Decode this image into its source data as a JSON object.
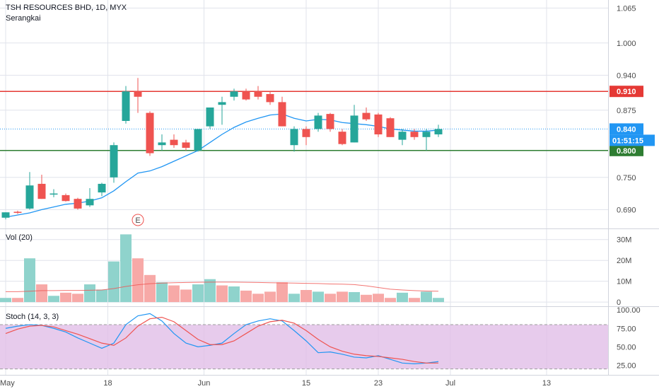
{
  "header": {
    "symbol_line": "TSH RESOURCES BHD, 1D, MYX",
    "style_label": "Serangkai"
  },
  "colors": {
    "up": "#26a69a",
    "down": "#ef5350",
    "ma": "#2196f3",
    "resistance": "#e53935",
    "support": "#2e7d32",
    "current": "#2196f3",
    "stoch_k": "#2196f3",
    "stoch_d": "#ef5350",
    "stoch_band": "#e1bee7",
    "grid": "#e0e3eb"
  },
  "chart_data": [
    {
      "type": "candlestick",
      "name": "price",
      "ylim": [
        0.655,
        1.08
      ],
      "yticks": [
        0.69,
        0.75,
        0.8,
        0.875,
        0.94,
        1.0,
        1.065
      ],
      "ytick_labels": [
        "0.690",
        "0.750",
        "0.800",
        "0.875",
        "0.940",
        "1.000",
        "1.065"
      ],
      "candles": [
        {
          "o": 0.675,
          "h": 0.685,
          "l": 0.672,
          "c": 0.685
        },
        {
          "o": 0.686,
          "h": 0.688,
          "l": 0.682,
          "c": 0.684
        },
        {
          "o": 0.692,
          "h": 0.76,
          "l": 0.69,
          "c": 0.735
        },
        {
          "o": 0.738,
          "h": 0.755,
          "l": 0.71,
          "c": 0.71
        },
        {
          "o": 0.72,
          "h": 0.728,
          "l": 0.713,
          "c": 0.72
        },
        {
          "o": 0.717,
          "h": 0.72,
          "l": 0.705,
          "c": 0.706
        },
        {
          "o": 0.71,
          "h": 0.712,
          "l": 0.69,
          "c": 0.692
        },
        {
          "o": 0.698,
          "h": 0.73,
          "l": 0.695,
          "c": 0.71
        },
        {
          "o": 0.722,
          "h": 0.74,
          "l": 0.715,
          "c": 0.738
        },
        {
          "o": 0.75,
          "h": 0.815,
          "l": 0.74,
          "c": 0.81
        },
        {
          "o": 0.855,
          "h": 0.92,
          "l": 0.85,
          "c": 0.91
        },
        {
          "o": 0.91,
          "h": 0.935,
          "l": 0.87,
          "c": 0.9
        },
        {
          "o": 0.87,
          "h": 0.873,
          "l": 0.79,
          "c": 0.795
        },
        {
          "o": 0.81,
          "h": 0.83,
          "l": 0.8,
          "c": 0.815
        },
        {
          "o": 0.82,
          "h": 0.83,
          "l": 0.805,
          "c": 0.81
        },
        {
          "o": 0.815,
          "h": 0.82,
          "l": 0.8,
          "c": 0.805
        },
        {
          "o": 0.8,
          "h": 0.84,
          "l": 0.798,
          "c": 0.84
        },
        {
          "o": 0.845,
          "h": 0.88,
          "l": 0.84,
          "c": 0.88
        },
        {
          "o": 0.885,
          "h": 0.9,
          "l": 0.848,
          "c": 0.89
        },
        {
          "o": 0.9,
          "h": 0.915,
          "l": 0.893,
          "c": 0.91
        },
        {
          "o": 0.91,
          "h": 0.915,
          "l": 0.893,
          "c": 0.895
        },
        {
          "o": 0.91,
          "h": 0.92,
          "l": 0.895,
          "c": 0.9
        },
        {
          "o": 0.905,
          "h": 0.91,
          "l": 0.885,
          "c": 0.89
        },
        {
          "o": 0.89,
          "h": 0.9,
          "l": 0.845,
          "c": 0.845
        },
        {
          "o": 0.81,
          "h": 0.845,
          "l": 0.798,
          "c": 0.84
        },
        {
          "o": 0.84,
          "h": 0.845,
          "l": 0.81,
          "c": 0.825
        },
        {
          "o": 0.84,
          "h": 0.87,
          "l": 0.835,
          "c": 0.865
        },
        {
          "o": 0.868,
          "h": 0.87,
          "l": 0.835,
          "c": 0.84
        },
        {
          "o": 0.835,
          "h": 0.84,
          "l": 0.81,
          "c": 0.812
        },
        {
          "o": 0.815,
          "h": 0.885,
          "l": 0.815,
          "c": 0.865
        },
        {
          "o": 0.87,
          "h": 0.88,
          "l": 0.855,
          "c": 0.858
        },
        {
          "o": 0.867,
          "h": 0.87,
          "l": 0.825,
          "c": 0.83
        },
        {
          "o": 0.86,
          "h": 0.862,
          "l": 0.825,
          "c": 0.825
        },
        {
          "o": 0.82,
          "h": 0.84,
          "l": 0.81,
          "c": 0.835
        },
        {
          "o": 0.835,
          "h": 0.84,
          "l": 0.82,
          "c": 0.825
        },
        {
          "o": 0.825,
          "h": 0.84,
          "l": 0.8,
          "c": 0.835
        },
        {
          "o": 0.83,
          "h": 0.848,
          "l": 0.825,
          "c": 0.84
        }
      ],
      "ma": [
        0.676,
        0.68,
        0.684,
        0.69,
        0.695,
        0.7,
        0.702,
        0.706,
        0.712,
        0.725,
        0.742,
        0.758,
        0.762,
        0.77,
        0.78,
        0.79,
        0.8,
        0.815,
        0.83,
        0.843,
        0.853,
        0.86,
        0.866,
        0.868,
        0.86,
        0.855,
        0.858,
        0.857,
        0.852,
        0.85,
        0.848,
        0.845,
        0.84,
        0.838,
        0.836,
        0.836,
        0.838
      ],
      "hlines": [
        {
          "value": 0.91,
          "label": "0.910",
          "kind": "resistance"
        },
        {
          "value": 0.8,
          "label": "0.800",
          "kind": "support"
        }
      ],
      "current": {
        "value": 0.84,
        "label": "0.840",
        "countdown": "01:51:15"
      },
      "event_marker": {
        "index": 11,
        "label": "E"
      }
    },
    {
      "type": "bar",
      "name": "Vol (20)",
      "ylim": [
        -2000000,
        35000000
      ],
      "yticks": [
        0,
        10000000,
        20000000,
        30000000
      ],
      "ytick_labels": [
        "0",
        "10M",
        "20M",
        "30M"
      ],
      "values": [
        2000000,
        2000000,
        21000000,
        8500000,
        3000000,
        4500000,
        4000000,
        8500000,
        6000000,
        19500000,
        32500000,
        21000000,
        13000000,
        9500000,
        8000000,
        6000000,
        8500000,
        11000000,
        8000000,
        7500000,
        5500000,
        4000000,
        5000000,
        9500000,
        4000000,
        5800000,
        5000000,
        4000000,
        5000000,
        4800000,
        3500000,
        4000000,
        2000000,
        4500000,
        2000000,
        5000000,
        2000000
      ],
      "directions": [
        "up",
        "down",
        "up",
        "down",
        "up",
        "down",
        "down",
        "up",
        "up",
        "up",
        "up",
        "down",
        "down",
        "up",
        "down",
        "down",
        "up",
        "up",
        "down",
        "up",
        "down",
        "down",
        "down",
        "down",
        "up",
        "down",
        "up",
        "down",
        "down",
        "up",
        "down",
        "down",
        "down",
        "up",
        "down",
        "up",
        "up"
      ],
      "ma": [
        5000000,
        5000000,
        5200000,
        5500000,
        5500000,
        5600000,
        5600000,
        5700000,
        5800000,
        6500000,
        7500000,
        8300000,
        8800000,
        9100000,
        9300000,
        9400000,
        9500000,
        9600000,
        9600000,
        9600000,
        9500000,
        9400000,
        9300000,
        9200000,
        9100000,
        9000000,
        8900000,
        8700000,
        8600000,
        8400000,
        7800000,
        7000000,
        6200000,
        5800000,
        5500000,
        5300000,
        5200000
      ]
    },
    {
      "type": "line",
      "name": "Stoch (14, 3, 3)",
      "ylim": [
        12,
        104
      ],
      "yticks": [
        25,
        50,
        75,
        100
      ],
      "ytick_labels": [
        "25.00",
        "50.00",
        "75.00",
        "100.00"
      ],
      "band": [
        20,
        80
      ],
      "series": [
        {
          "kind": "k",
          "values": [
            75,
            78,
            80,
            79,
            75,
            70,
            62,
            55,
            48,
            55,
            80,
            92,
            95,
            85,
            68,
            55,
            50,
            52,
            55,
            68,
            80,
            85,
            88,
            85,
            72,
            58,
            42,
            43,
            40,
            36,
            35,
            38,
            33,
            28,
            27,
            28,
            30
          ]
        },
        {
          "kind": "d",
          "values": [
            68,
            74,
            78,
            79,
            77,
            72,
            67,
            61,
            55,
            52,
            62,
            78,
            88,
            90,
            84,
            72,
            60,
            53,
            53,
            58,
            68,
            78,
            84,
            86,
            82,
            72,
            60,
            50,
            44,
            40,
            38,
            37,
            35,
            33,
            30,
            28,
            28
          ]
        }
      ]
    }
  ],
  "x_axis": {
    "labels": [
      {
        "text": "May",
        "index": 0
      },
      {
        "text": "18",
        "index": 8.5
      },
      {
        "text": "Jun",
        "index": 16.5
      },
      {
        "text": "15",
        "index": 25
      },
      {
        "text": "23",
        "index": 31
      },
      {
        "text": "Jul",
        "index": 37
      },
      {
        "text": "13",
        "index": 45
      }
    ]
  }
}
